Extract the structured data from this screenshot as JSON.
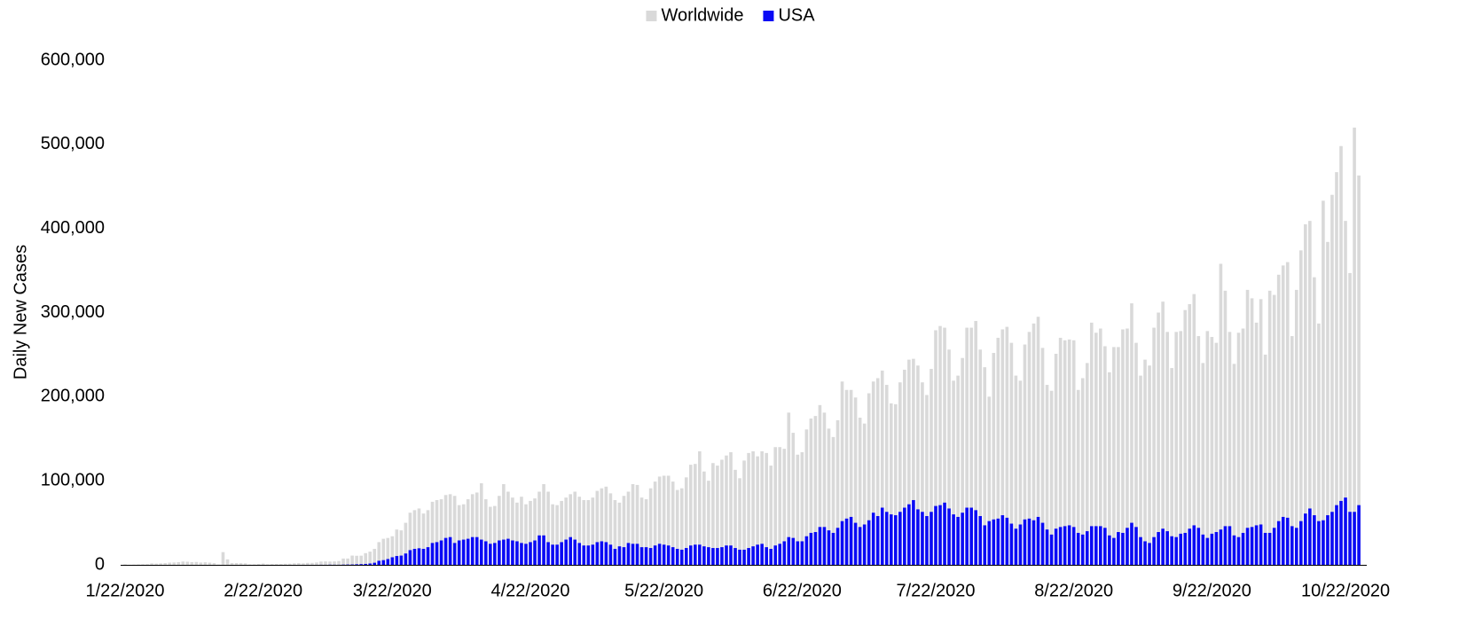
{
  "chart_data": {
    "type": "bar",
    "overlap": true,
    "y_label": "Daily New Cases",
    "legend": "top",
    "ylim": [
      0,
      600000
    ],
    "yticks": [
      0,
      {
        "value": 100000,
        "label": "100,000"
      },
      {
        "value": 200000,
        "label": "200,000"
      },
      {
        "value": 300000,
        "label": "300,000"
      },
      {
        "value": 400000,
        "label": "400,000"
      },
      {
        "value": 500000,
        "label": "500,000"
      },
      {
        "value": 600000,
        "label": "600,000"
      }
    ],
    "categories": [
      "1/22/2020",
      null,
      null,
      null,
      null,
      null,
      null,
      null,
      null,
      null,
      null,
      null,
      null,
      null,
      null,
      null,
      null,
      null,
      null,
      null,
      null,
      null,
      null,
      null,
      null,
      null,
      null,
      null,
      null,
      null,
      null,
      "2/22/2020",
      null,
      null,
      null,
      null,
      null,
      null,
      null,
      null,
      null,
      null,
      null,
      null,
      null,
      null,
      null,
      null,
      null,
      null,
      null,
      null,
      null,
      null,
      null,
      null,
      null,
      null,
      null,
      null,
      "3/22/2020",
      null,
      null,
      null,
      null,
      null,
      null,
      null,
      null,
      null,
      null,
      null,
      null,
      null,
      null,
      null,
      null,
      null,
      null,
      null,
      null,
      null,
      null,
      null,
      null,
      null,
      null,
      null,
      null,
      null,
      null,
      "4/22/2020",
      null,
      null,
      null,
      null,
      null,
      null,
      null,
      null,
      null,
      null,
      null,
      null,
      null,
      null,
      null,
      null,
      null,
      null,
      null,
      null,
      null,
      null,
      null,
      null,
      null,
      null,
      null,
      null,
      null,
      "5/22/2020",
      null,
      null,
      null,
      null,
      null,
      null,
      null,
      null,
      null,
      null,
      null,
      null,
      null,
      null,
      null,
      null,
      null,
      null,
      null,
      null,
      null,
      null,
      null,
      null,
      null,
      null,
      null,
      null,
      null,
      null,
      "6/22/2020",
      null,
      null,
      null,
      null,
      null,
      null,
      null,
      null,
      null,
      null,
      null,
      null,
      null,
      null,
      null,
      null,
      null,
      null,
      null,
      null,
      null,
      null,
      null,
      null,
      null,
      null,
      null,
      null,
      null,
      "7/22/2020",
      null,
      null,
      null,
      null,
      null,
      null,
      null,
      null,
      null,
      null,
      null,
      null,
      null,
      null,
      null,
      null,
      null,
      null,
      null,
      null,
      null,
      null,
      null,
      null,
      null,
      null,
      null,
      null,
      null,
      null,
      "8/22/2020",
      null,
      null,
      null,
      null,
      null,
      null,
      null,
      null,
      null,
      null,
      null,
      null,
      null,
      null,
      null,
      null,
      null,
      null,
      null,
      null,
      null,
      null,
      null,
      null,
      null,
      null,
      null,
      null,
      null,
      null,
      "9/22/2020",
      null,
      null,
      null,
      null,
      null,
      null,
      null,
      null,
      null,
      null,
      null,
      null,
      null,
      null,
      null,
      null,
      null,
      null,
      null,
      null,
      null,
      null,
      null,
      null,
      null,
      null,
      null,
      null,
      null,
      "10/22/2020",
      null,
      null,
      null
    ],
    "series": [
      {
        "name": "Worldwide",
        "color": "#d9d9d9",
        "values": [
          600,
          100,
          300,
          500,
          700,
          800,
          1800,
          1500,
          1800,
          2100,
          2600,
          2800,
          3200,
          3900,
          3700,
          3200,
          3400,
          2700,
          3000,
          2600,
          2000,
          400,
          15100,
          6500,
          2100,
          2100,
          2000,
          1800,
          500,
          600,
          1000,
          1600,
          600,
          900,
          1000,
          1000,
          1300,
          1400,
          1800,
          2000,
          1800,
          2300,
          2300,
          2800,
          3900,
          4000,
          3900,
          4000,
          4500,
          7500,
          7500,
          11000,
          10800,
          10900,
          13900,
          15700,
          19000,
          27000,
          31000,
          32000,
          34000,
          42000,
          41000,
          50000,
          62000,
          65000,
          67000,
          61000,
          65000,
          75000,
          77000,
          78000,
          83000,
          84000,
          82000,
          71000,
          72000,
          78000,
          84000,
          86000,
          97000,
          78000,
          69000,
          70000,
          82000,
          96000,
          87000,
          80000,
          74000,
          81000,
          72000,
          76000,
          79000,
          87000,
          96000,
          87000,
          72000,
          71000,
          76000,
          80000,
          84000,
          87000,
          81000,
          77000,
          77000,
          80000,
          88000,
          91000,
          93000,
          85000,
          77000,
          74000,
          82000,
          87000,
          96000,
          95000,
          80000,
          78000,
          91000,
          99000,
          105000,
          106000,
          106000,
          99000,
          89000,
          91000,
          104000,
          119000,
          120000,
          135000,
          111000,
          100000,
          121000,
          118000,
          125000,
          130000,
          134000,
          113000,
          103000,
          124000,
          133000,
          135000,
          129000,
          135000,
          133000,
          118000,
          140000,
          140000,
          138000,
          181000,
          157000,
          131000,
          134000,
          161000,
          174000,
          177000,
          190000,
          181000,
          162000,
          152000,
          172000,
          218000,
          208000,
          208000,
          199000,
          175000,
          168000,
          204000,
          218000,
          222000,
          231000,
          214000,
          192000,
          191000,
          217000,
          232000,
          244000,
          245000,
          237000,
          217000,
          202000,
          233000,
          279000,
          284000,
          282000,
          256000,
          219000,
          225000,
          246000,
          282000,
          282000,
          290000,
          256000,
          235000,
          200000,
          252000,
          270000,
          280000,
          283000,
          264000,
          225000,
          219000,
          262000,
          277000,
          287000,
          295000,
          258000,
          214000,
          207000,
          251000,
          270000,
          267000,
          268000,
          267000,
          208000,
          222000,
          240000,
          288000,
          276000,
          281000,
          260000,
          229000,
          259000,
          259000,
          280000,
          281000,
          311000,
          264000,
          225000,
          244000,
          237000,
          282000,
          300000,
          313000,
          277000,
          234000,
          277000,
          278000,
          303000,
          310000,
          322000,
          272000,
          240000,
          278000,
          271000,
          264000,
          358000,
          326000,
          277000,
          239000,
          276000,
          281000,
          327000,
          317000,
          288000,
          316000,
          250000,
          326000,
          321000,
          345000,
          356000,
          360000,
          272000,
          327000,
          374000,
          405000,
          409000,
          342000,
          287000,
          433000,
          384000,
          440000,
          467000,
          498000,
          409000,
          347000,
          520000,
          463000
        ]
      },
      {
        "name": "USA",
        "color": "#0a0af5",
        "values": [
          1,
          0,
          1,
          0,
          3,
          0,
          0,
          0,
          0,
          2,
          1,
          0,
          3,
          0,
          0,
          0,
          0,
          0,
          1,
          0,
          0,
          1,
          1,
          0,
          0,
          0,
          0,
          0,
          0,
          0,
          0,
          0,
          0,
          0,
          0,
          1,
          0,
          2,
          8,
          8,
          7,
          23,
          19,
          33,
          77,
          53,
          166,
          116,
          75,
          267,
          350,
          431,
          656,
          853,
          1104,
          1600,
          2500,
          4800,
          5600,
          6900,
          9000,
          10500,
          11000,
          13500,
          17500,
          19000,
          19700,
          19000,
          21000,
          26000,
          27000,
          29000,
          32000,
          33000,
          26000,
          29000,
          30000,
          31000,
          33000,
          33000,
          30000,
          28000,
          25000,
          26000,
          29000,
          30000,
          31000,
          29000,
          28000,
          26000,
          25000,
          27000,
          29000,
          35000,
          35000,
          27000,
          24000,
          24000,
          27000,
          30000,
          33000,
          30000,
          26000,
          23000,
          23000,
          24000,
          27000,
          28000,
          27000,
          24000,
          19000,
          22000,
          21000,
          26000,
          25000,
          25000,
          21000,
          21000,
          20000,
          23000,
          25000,
          24000,
          23000,
          21000,
          19000,
          18000,
          20000,
          23000,
          24000,
          24000,
          22000,
          21000,
          20000,
          20000,
          21000,
          23000,
          23000,
          20000,
          18000,
          18000,
          20000,
          22000,
          24000,
          25000,
          21000,
          19000,
          23000,
          25000,
          28000,
          33000,
          32000,
          28000,
          28000,
          34000,
          38000,
          39000,
          45000,
          45000,
          41000,
          38000,
          44000,
          52000,
          55000,
          57000,
          50000,
          45000,
          48000,
          53000,
          62000,
          58000,
          68000,
          63000,
          60000,
          59000,
          63000,
          68000,
          72000,
          77000,
          66000,
          63000,
          58000,
          63000,
          70000,
          71000,
          74000,
          67000,
          60000,
          57000,
          62000,
          68000,
          68000,
          65000,
          58000,
          47000,
          52000,
          54000,
          55000,
          59000,
          56000,
          49000,
          43000,
          48000,
          54000,
          55000,
          53000,
          57000,
          50000,
          42000,
          36000,
          43000,
          45000,
          46000,
          47000,
          45000,
          38000,
          36000,
          40000,
          46000,
          46000,
          46000,
          44000,
          35000,
          32000,
          39000,
          38000,
          44000,
          50000,
          45000,
          33000,
          28000,
          26000,
          33000,
          39000,
          43000,
          40000,
          34000,
          33000,
          37000,
          38000,
          43000,
          47000,
          44000,
          36000,
          32000,
          37000,
          39000,
          42000,
          46000,
          46000,
          35000,
          33000,
          38000,
          44000,
          45000,
          47000,
          48000,
          38000,
          38000,
          44000,
          52000,
          57000,
          56000,
          46000,
          44000,
          52000,
          61000,
          67000,
          59000,
          52000,
          53000,
          59000,
          63000,
          71000,
          76000,
          80000,
          63000,
          63000,
          71000
        ]
      }
    ]
  }
}
